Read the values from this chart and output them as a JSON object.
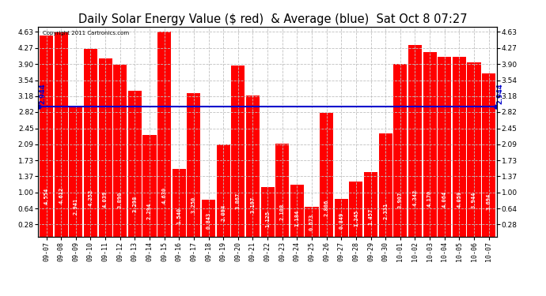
{
  "title": "Daily Solar Energy Value ($ red)  & Average (blue)  Sat Oct 8 07:27",
  "copyright": "Copyright 2011 Cartronics.com",
  "categories": [
    "09-07",
    "09-08",
    "09-09",
    "09-10",
    "09-11",
    "09-12",
    "09-13",
    "09-14",
    "09-15",
    "09-16",
    "09-17",
    "09-18",
    "09-19",
    "09-20",
    "09-21",
    "09-22",
    "09-23",
    "09-24",
    "09-25",
    "09-26",
    "09-27",
    "09-28",
    "09-29",
    "09-30",
    "10-01",
    "10-02",
    "10-03",
    "10-04",
    "10-05",
    "10-06",
    "10-07"
  ],
  "values": [
    4.554,
    4.612,
    2.941,
    4.252,
    4.039,
    3.89,
    3.298,
    2.294,
    4.63,
    1.54,
    3.25,
    0.843,
    2.094,
    3.867,
    3.197,
    1.125,
    2.108,
    1.184,
    0.673,
    2.806,
    0.849,
    1.245,
    1.457,
    2.331,
    3.907,
    4.342,
    4.17,
    4.064,
    4.059,
    3.944,
    3.694
  ],
  "average": 2.944,
  "bar_color": "#ff0000",
  "avg_line_color": "#0000cc",
  "background_color": "#ffffff",
  "grid_color": "#c0c0c0",
  "yticks": [
    0.28,
    0.64,
    1.0,
    1.37,
    1.73,
    2.09,
    2.45,
    2.82,
    3.18,
    3.54,
    3.9,
    4.27,
    4.63
  ],
  "ymin": 0.0,
  "ymax": 4.75,
  "title_fontsize": 10.5,
  "bar_label_fontsize": 5.0,
  "tick_label_fontsize": 6.0,
  "ytick_fontsize": 6.5,
  "avg_fontsize": 6.0
}
